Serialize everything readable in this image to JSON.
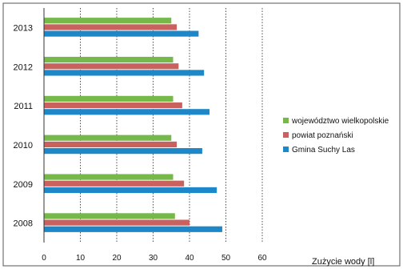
{
  "chart_data": {
    "type": "bar",
    "orientation": "horizontal",
    "categories": [
      "2008",
      "2009",
      "2010",
      "2011",
      "2012",
      "2013"
    ],
    "series": [
      {
        "name": "województwo wielkopolskie",
        "color": "#76b84a",
        "values": [
          36,
          35.5,
          35,
          35.5,
          35.5,
          35
        ]
      },
      {
        "name": "powiat poznański",
        "color": "#c9625e",
        "values": [
          40,
          38.5,
          36.5,
          38,
          37,
          36.5
        ]
      },
      {
        "name": "Gmina Suchy Las",
        "color": "#1e87c8",
        "values": [
          49,
          47.5,
          43.5,
          45.5,
          44,
          42.5
        ]
      }
    ],
    "xlim": [
      0,
      60
    ],
    "xticks": [
      "0",
      "10",
      "20",
      "30",
      "40",
      "50",
      "60"
    ],
    "xlabel": "Zużycie wody [l]",
    "grid": "vertical",
    "legend_position": "right"
  }
}
